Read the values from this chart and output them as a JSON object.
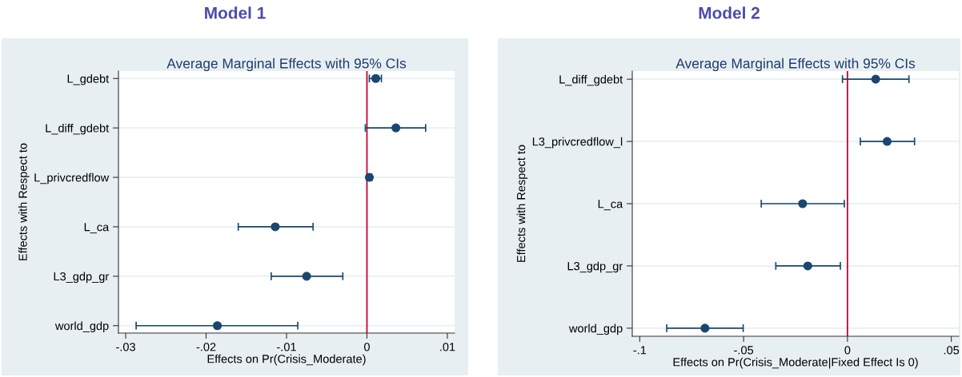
{
  "chart_data": [
    {
      "type": "scatter",
      "title": "Model 1",
      "subtitle": "Average Marginal Effects with 95% CIs",
      "xlabel": "Effects on Pr(Crisis_Moderate)",
      "ylabel": "Effects with Respect to",
      "orientation": "horizontal",
      "categories": [
        "L_gdebt",
        "L_diff_gdebt",
        "L_privcredflow",
        "L_ca",
        "L3_gdp_gr",
        "world_gdp"
      ],
      "series": [
        {
          "color": "#1a476f",
          "values": [
            0.0011,
            0.0036,
            0.0003,
            -0.0114,
            -0.0075,
            -0.0186
          ],
          "errors": [
            [
              0.0003,
              0.0018
            ],
            [
              -0.0002,
              0.0073
            ],
            [
              0.0,
              0.0006
            ],
            [
              -0.016,
              -0.0067
            ],
            [
              -0.0119,
              -0.003
            ],
            [
              -0.0287,
              -0.0086
            ]
          ]
        }
      ],
      "xlim": [
        -0.0309,
        0.0109
      ],
      "xticks": [
        {
          "value": -0.03,
          "label": "-.03"
        },
        {
          "value": -0.02,
          "label": "-.02"
        },
        {
          "value": -0.01,
          "label": "-.01"
        },
        0,
        {
          "value": 0.01,
          "label": ".01"
        }
      ],
      "ref_lines": [
        {
          "axis": "x",
          "value": 0,
          "color": "#c10534"
        }
      ],
      "grid": "y",
      "marker": "circle",
      "legend": false
    },
    {
      "type": "scatter",
      "title": "Model 2",
      "subtitle": "Average Marginal Effects with 95% CIs",
      "xlabel": "Effects on Pr(Crisis_Moderate|Fixed Effect Is 0)",
      "ylabel": "Effects with Respect to",
      "orientation": "horizontal",
      "categories": [
        "L_diff_gdebt",
        "L3_privcredflow_l",
        "L_ca",
        "L3_gdp_gr",
        "world_gdp"
      ],
      "series": [
        {
          "color": "#1a476f",
          "values": [
            0.0136,
            0.0191,
            -0.0216,
            -0.0191,
            -0.0686
          ],
          "errors": [
            [
              -0.0024,
              0.0296
            ],
            [
              0.0062,
              0.0323
            ],
            [
              -0.0415,
              -0.0015
            ],
            [
              -0.0345,
              -0.0034
            ],
            [
              -0.087,
              -0.0502
            ]
          ]
        }
      ],
      "xlim": [
        -0.1036,
        0.0536
      ],
      "xticks": [
        {
          "value": -0.1,
          "label": "-.1"
        },
        {
          "value": -0.05,
          "label": "-.05"
        },
        0,
        {
          "value": 0.05,
          "label": ".05"
        }
      ],
      "ref_lines": [
        {
          "axis": "x",
          "value": 0,
          "color": "#c10534"
        }
      ],
      "grid": "y",
      "marker": "circle",
      "legend": false
    }
  ]
}
